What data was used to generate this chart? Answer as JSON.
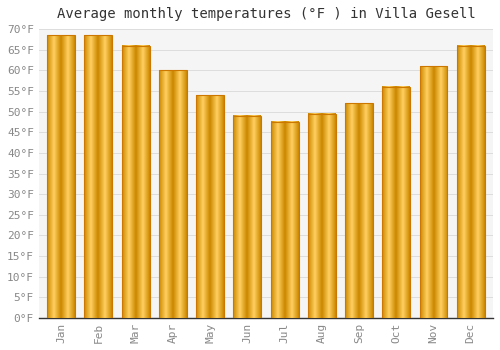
{
  "title": "Average monthly temperatures (°F ) in Villa Gesell",
  "months": [
    "Jan",
    "Feb",
    "Mar",
    "Apr",
    "May",
    "Jun",
    "Jul",
    "Aug",
    "Sep",
    "Oct",
    "Nov",
    "Dec"
  ],
  "values": [
    68.5,
    68.5,
    66,
    60,
    54,
    49,
    47.5,
    49.5,
    52,
    56,
    61,
    66
  ],
  "bar_color_face": "#FFBB33",
  "bar_color_left": "#E8890A",
  "bar_color_right": "#E8890A",
  "bar_color_center": "#FFD060",
  "bar_edge_color": "#CC7700",
  "background_color": "#FFFFFF",
  "plot_bg_color": "#F5F5F5",
  "grid_color": "#DDDDDD",
  "ylim": [
    0,
    70
  ],
  "yticks": [
    0,
    5,
    10,
    15,
    20,
    25,
    30,
    35,
    40,
    45,
    50,
    55,
    60,
    65,
    70
  ],
  "ytick_labels": [
    "0°F",
    "5°F",
    "10°F",
    "15°F",
    "20°F",
    "25°F",
    "30°F",
    "35°F",
    "40°F",
    "45°F",
    "50°F",
    "55°F",
    "60°F",
    "65°F",
    "70°F"
  ],
  "title_fontsize": 10,
  "tick_fontsize": 8,
  "tick_color": "#888888",
  "bar_width": 0.75,
  "figsize": [
    5.0,
    3.5
  ],
  "dpi": 100
}
